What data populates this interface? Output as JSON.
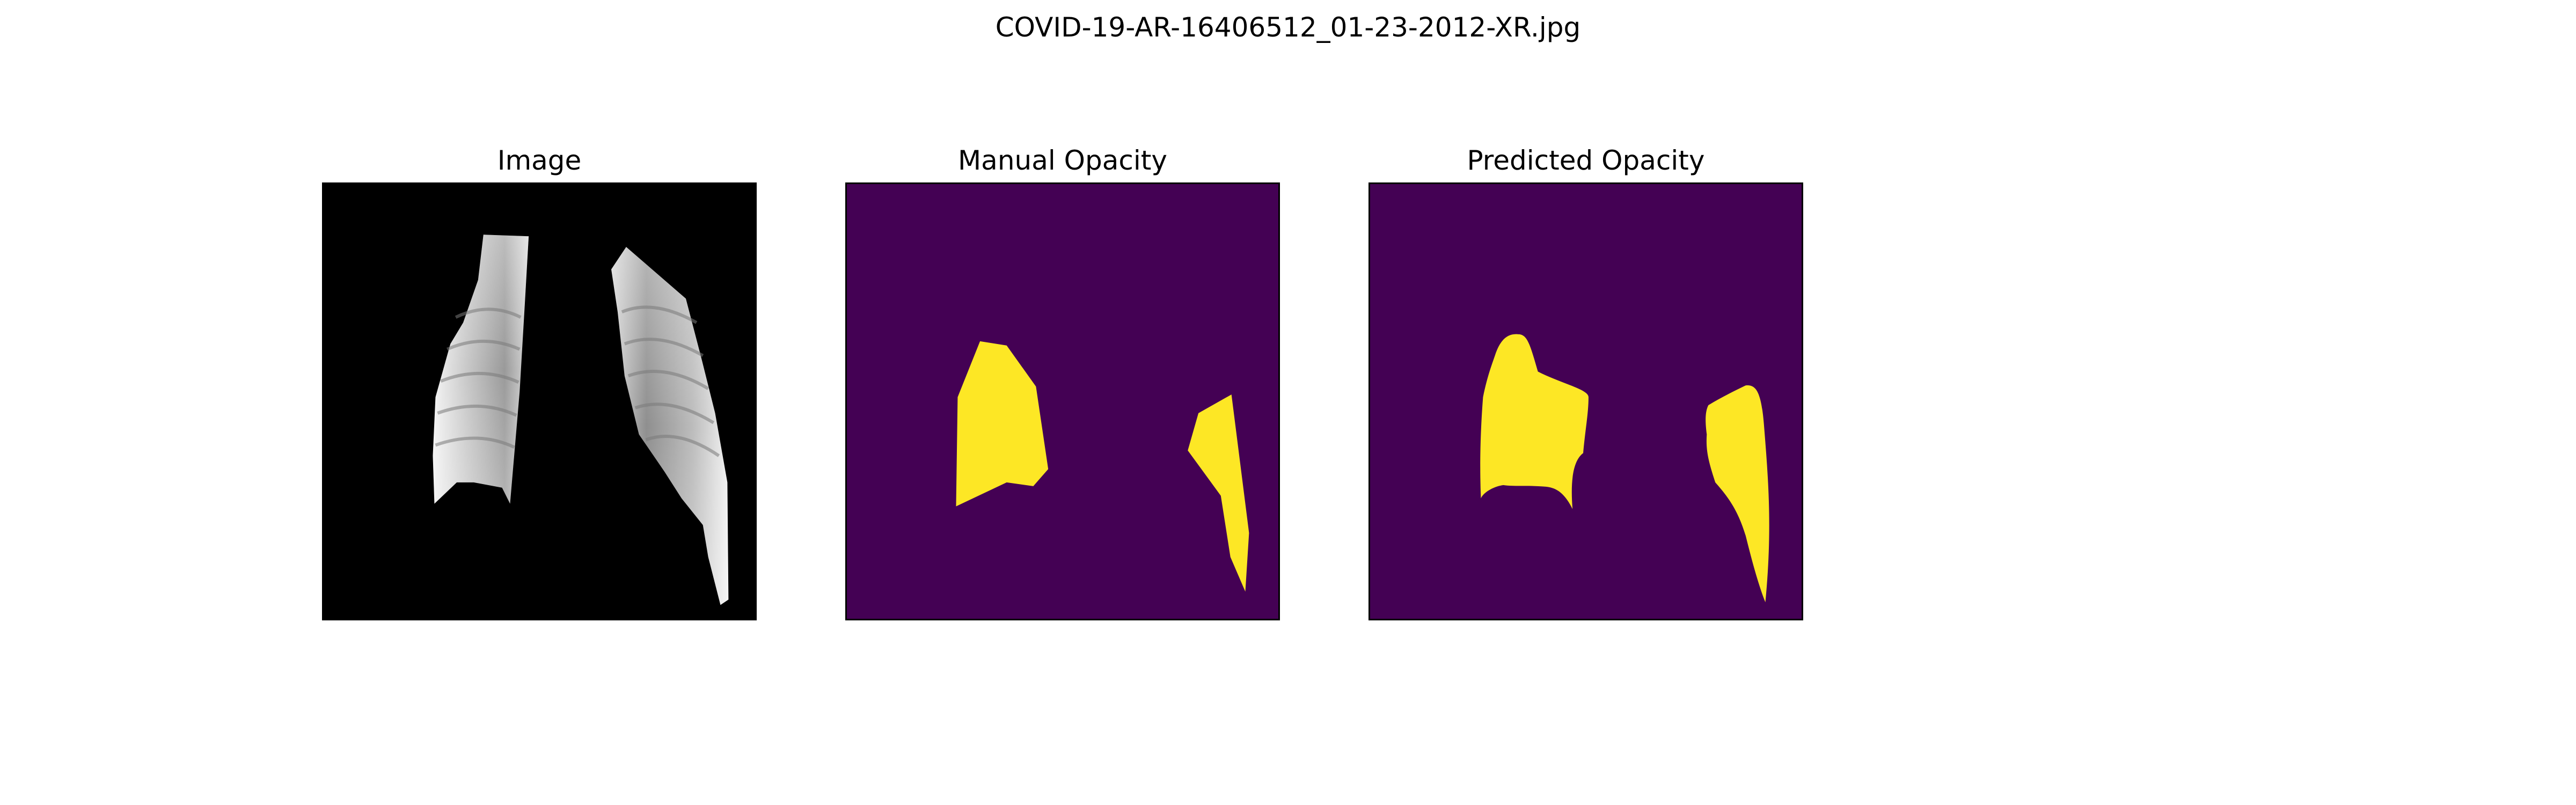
{
  "figure": {
    "title": "COVID-19-AR-16406512_01-23-2012-XR.jpg"
  },
  "panels": {
    "image": {
      "title": "Image"
    },
    "manual": {
      "title": "Manual Opacity"
    },
    "predicted": {
      "title": "Predicted Opacity"
    }
  },
  "colors": {
    "background": "#000000",
    "mask_background": "#440154",
    "mask_foreground": "#fde725"
  }
}
